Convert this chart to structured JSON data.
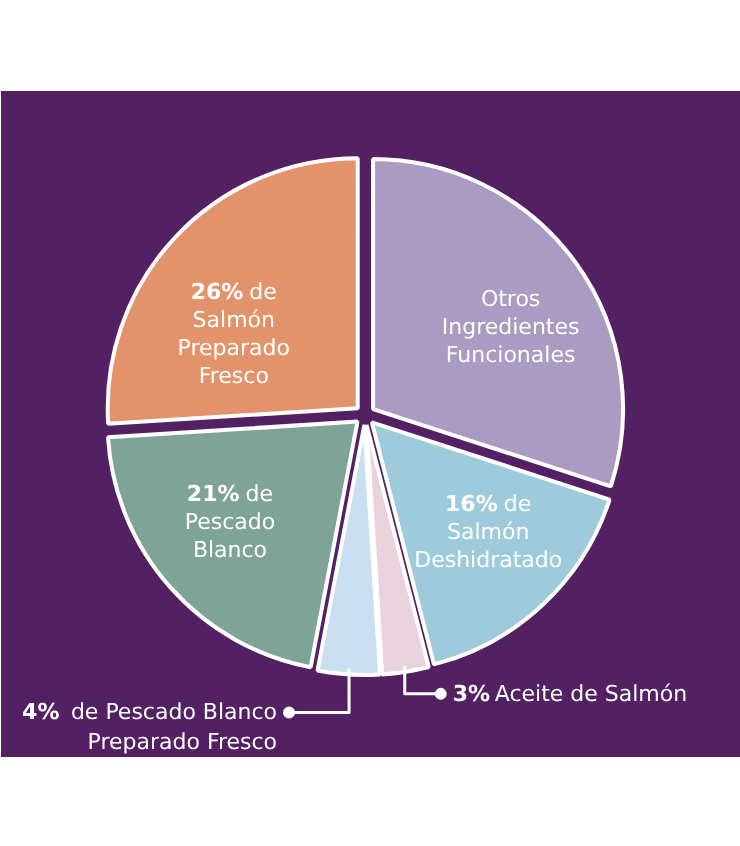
{
  "chart_data": {
    "type": "pie",
    "categories": [
      "Otros Ingredientes Funcionales",
      "de Salmón Deshidratado",
      "Aceite de Salmón",
      "de Pescado Blanco Preparado Fresco",
      "de Pescado Blanco",
      "de Salmón Preparado Fresco"
    ],
    "values": [
      30,
      16,
      3,
      4,
      21,
      26
    ],
    "value_labels": [
      null,
      "16%",
      "3%",
      "4%",
      "21%",
      "26%"
    ],
    "colors": [
      "#a99bc2",
      "#9dcbdc",
      "#ead2dc",
      "#c9def0",
      "#7fa497",
      "#e3936c"
    ]
  }
}
